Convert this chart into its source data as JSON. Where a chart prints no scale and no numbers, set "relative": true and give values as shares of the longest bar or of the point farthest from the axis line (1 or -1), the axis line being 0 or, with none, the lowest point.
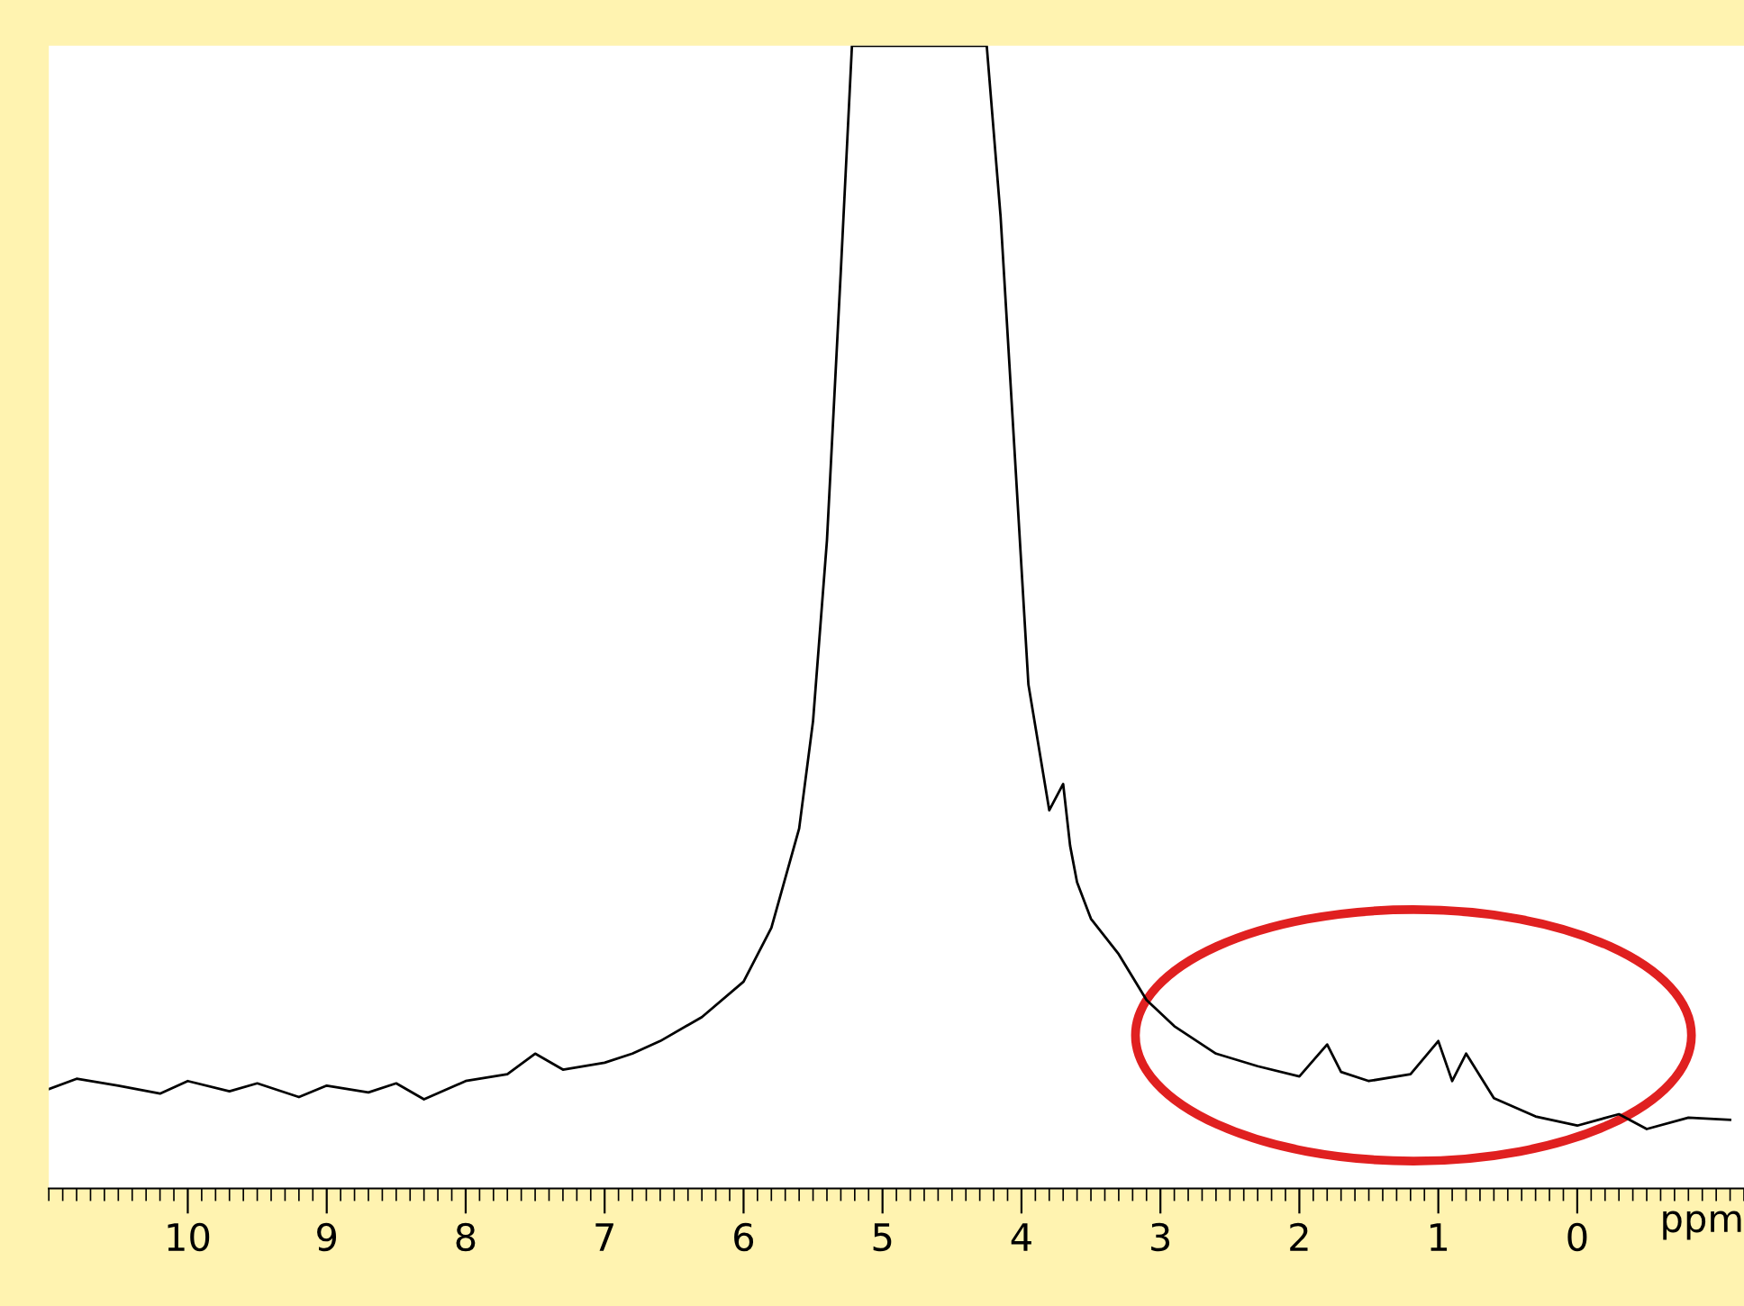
{
  "chart_data": {
    "type": "line",
    "relative": true,
    "xlabel": "ppm",
    "color": "#000000",
    "xlim": [
      11.0,
      -1.2
    ],
    "xticks": [
      10,
      9,
      8,
      7,
      6,
      5,
      4,
      3,
      2,
      1,
      0
    ],
    "x": [
      11.0,
      10.8,
      10.5,
      10.2,
      10.0,
      9.7,
      9.5,
      9.2,
      9.0,
      8.7,
      8.5,
      8.3,
      8.0,
      7.7,
      7.5,
      7.3,
      7.0,
      6.8,
      6.6,
      6.3,
      6.0,
      5.8,
      5.6,
      5.5,
      5.4,
      5.3,
      5.22,
      4.25,
      4.15,
      4.05,
      3.95,
      3.8,
      3.7,
      3.65,
      3.6,
      3.5,
      3.3,
      3.1,
      2.9,
      2.6,
      2.3,
      2.0,
      1.8,
      1.7,
      1.5,
      1.2,
      1.0,
      0.9,
      0.8,
      0.6,
      0.3,
      0.0,
      -0.3,
      -0.5,
      -0.8,
      -1.1
    ],
    "values": [
      0.087,
      0.096,
      0.09,
      0.083,
      0.094,
      0.085,
      0.092,
      0.08,
      0.09,
      0.084,
      0.092,
      0.078,
      0.094,
      0.1,
      0.118,
      0.104,
      0.11,
      0.118,
      0.129,
      0.15,
      0.181,
      0.228,
      0.315,
      0.409,
      0.567,
      0.803,
      1.0,
      1.0,
      0.85,
      0.646,
      0.441,
      0.331,
      0.354,
      0.3,
      0.268,
      0.236,
      0.205,
      0.165,
      0.142,
      0.118,
      0.107,
      0.098,
      0.126,
      0.102,
      0.094,
      0.1,
      0.129,
      0.094,
      0.118,
      0.079,
      0.063,
      0.055,
      0.065,
      0.052,
      0.062,
      0.06
    ]
  }
}
